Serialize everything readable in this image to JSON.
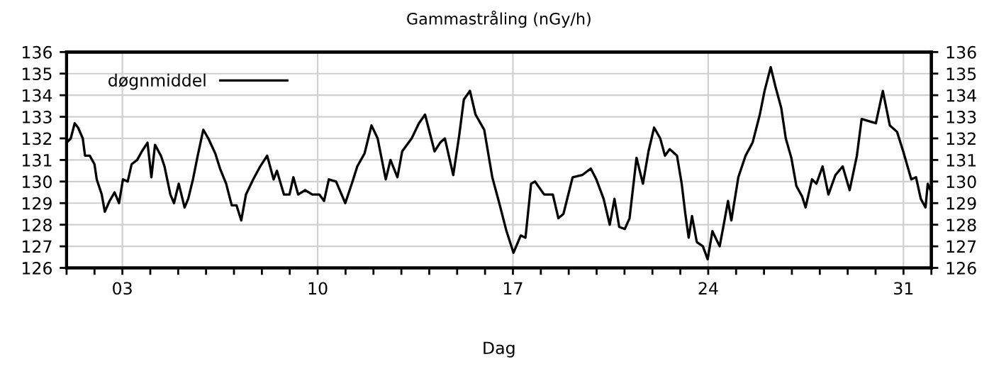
{
  "chart_data": {
    "type": "line",
    "title": "Gammastråling (nGy/h)",
    "xlabel": "Dag",
    "xlim": [
      1,
      32
    ],
    "ylim": [
      126,
      136
    ],
    "y2lim": [
      126,
      136
    ],
    "xticks": [
      {
        "value": 1,
        "label": null
      },
      {
        "value": 2,
        "label": null
      },
      {
        "value": 3,
        "label": "03"
      },
      {
        "value": 4,
        "label": null
      },
      {
        "value": 5,
        "label": null
      },
      {
        "value": 6,
        "label": null
      },
      {
        "value": 7,
        "label": null
      },
      {
        "value": 8,
        "label": null
      },
      {
        "value": 9,
        "label": null
      },
      {
        "value": 10,
        "label": "10"
      },
      {
        "value": 11,
        "label": null
      },
      {
        "value": 12,
        "label": null
      },
      {
        "value": 13,
        "label": null
      },
      {
        "value": 14,
        "label": null
      },
      {
        "value": 15,
        "label": null
      },
      {
        "value": 16,
        "label": null
      },
      {
        "value": 17,
        "label": "17"
      },
      {
        "value": 18,
        "label": null
      },
      {
        "value": 19,
        "label": null
      },
      {
        "value": 20,
        "label": null
      },
      {
        "value": 21,
        "label": null
      },
      {
        "value": 22,
        "label": null
      },
      {
        "value": 23,
        "label": null
      },
      {
        "value": 24,
        "label": "24"
      },
      {
        "value": 25,
        "label": null
      },
      {
        "value": 26,
        "label": null
      },
      {
        "value": 27,
        "label": null
      },
      {
        "value": 28,
        "label": null
      },
      {
        "value": 29,
        "label": null
      },
      {
        "value": 30,
        "label": null
      },
      {
        "value": 31,
        "label": "31"
      },
      {
        "value": 32,
        "label": null
      }
    ],
    "yticks": [
      126,
      127,
      128,
      129,
      130,
      131,
      132,
      133,
      134,
      135,
      136
    ],
    "y2ticks": [
      126,
      127,
      128,
      129,
      130,
      131,
      132,
      133,
      134,
      135,
      136
    ],
    "grid": true,
    "legend": "top left",
    "marker": "none",
    "line_style": "solid",
    "series": [
      {
        "name": "døgnmiddel",
        "color": "#000000",
        "x": [
          1.0,
          1.15,
          1.29,
          1.41,
          1.58,
          1.66,
          1.83,
          2.0,
          2.08,
          2.26,
          2.37,
          2.54,
          2.72,
          2.88,
          3.02,
          3.19,
          3.33,
          3.53,
          3.7,
          3.9,
          4.04,
          4.17,
          4.38,
          4.51,
          4.72,
          4.85,
          5.02,
          5.23,
          5.36,
          5.53,
          5.7,
          5.9,
          6.08,
          6.33,
          6.5,
          6.72,
          6.92,
          7.09,
          7.26,
          7.43,
          7.69,
          7.94,
          8.19,
          8.42,
          8.54,
          8.79,
          8.99,
          9.13,
          9.3,
          9.55,
          9.81,
          10.06,
          10.23,
          10.4,
          10.66,
          10.99,
          11.25,
          11.42,
          11.68,
          11.93,
          12.15,
          12.44,
          12.61,
          12.86,
          13.03,
          13.37,
          13.63,
          13.85,
          14.19,
          14.39,
          14.56,
          14.86,
          15.07,
          15.24,
          15.46,
          15.66,
          15.97,
          16.26,
          16.51,
          16.77,
          17.02,
          17.28,
          17.45,
          17.65,
          17.79,
          18.12,
          18.43,
          18.63,
          18.81,
          19.14,
          19.48,
          19.79,
          19.99,
          20.25,
          20.47,
          20.64,
          20.81,
          21.01,
          21.18,
          21.43,
          21.66,
          21.86,
          22.06,
          22.28,
          22.45,
          22.62,
          22.88,
          23.05,
          23.18,
          23.3,
          23.42,
          23.59,
          23.81,
          23.98,
          24.15,
          24.41,
          24.57,
          24.71,
          24.83,
          25.08,
          25.34,
          25.59,
          25.85,
          26.02,
          26.24,
          26.41,
          26.62,
          26.78,
          26.98,
          27.16,
          27.37,
          27.49,
          27.72,
          27.88,
          28.1,
          28.31,
          28.56,
          28.82,
          29.07,
          29.33,
          29.5,
          29.75,
          30.01,
          30.26,
          30.51,
          30.77,
          30.99,
          31.28,
          31.45,
          31.62,
          31.79,
          31.87,
          32.0
        ],
        "values": [
          131.8,
          132.0,
          132.7,
          132.5,
          132.0,
          131.2,
          131.2,
          130.8,
          130.1,
          129.4,
          128.6,
          129.1,
          129.5,
          129.0,
          130.1,
          130.0,
          130.8,
          131.0,
          131.4,
          131.8,
          130.2,
          131.7,
          131.2,
          130.7,
          129.4,
          129.0,
          129.9,
          128.8,
          129.2,
          130.1,
          131.2,
          132.4,
          132.0,
          131.3,
          130.6,
          129.9,
          128.9,
          128.9,
          128.2,
          129.4,
          130.1,
          130.7,
          131.2,
          130.1,
          130.5,
          129.4,
          129.4,
          130.2,
          129.4,
          129.6,
          129.4,
          129.4,
          129.1,
          130.1,
          130.0,
          129.0,
          130.0,
          130.7,
          131.3,
          132.6,
          132.0,
          130.1,
          131.0,
          130.2,
          131.4,
          132.0,
          132.7,
          133.1,
          131.4,
          131.8,
          132.0,
          130.3,
          132.1,
          133.8,
          134.2,
          133.1,
          132.4,
          130.2,
          129.0,
          127.7,
          126.7,
          127.5,
          127.4,
          129.9,
          130.0,
          129.4,
          129.4,
          128.3,
          128.5,
          130.2,
          130.3,
          130.6,
          130.1,
          129.2,
          128.0,
          129.2,
          127.9,
          127.8,
          128.3,
          131.1,
          129.9,
          131.4,
          132.5,
          132.0,
          131.2,
          131.5,
          131.2,
          129.9,
          128.5,
          127.4,
          128.4,
          127.2,
          127.0,
          126.4,
          127.7,
          127.0,
          128.1,
          129.1,
          128.2,
          130.2,
          131.2,
          131.8,
          133.1,
          134.2,
          135.3,
          134.4,
          133.4,
          132.0,
          131.1,
          129.8,
          129.3,
          128.8,
          130.1,
          129.9,
          130.7,
          129.4,
          130.3,
          130.7,
          129.6,
          131.2,
          132.9,
          132.8,
          132.7,
          134.2,
          132.6,
          132.3,
          131.4,
          130.1,
          130.2,
          129.2,
          128.8,
          129.9,
          129.5
        ]
      }
    ]
  }
}
